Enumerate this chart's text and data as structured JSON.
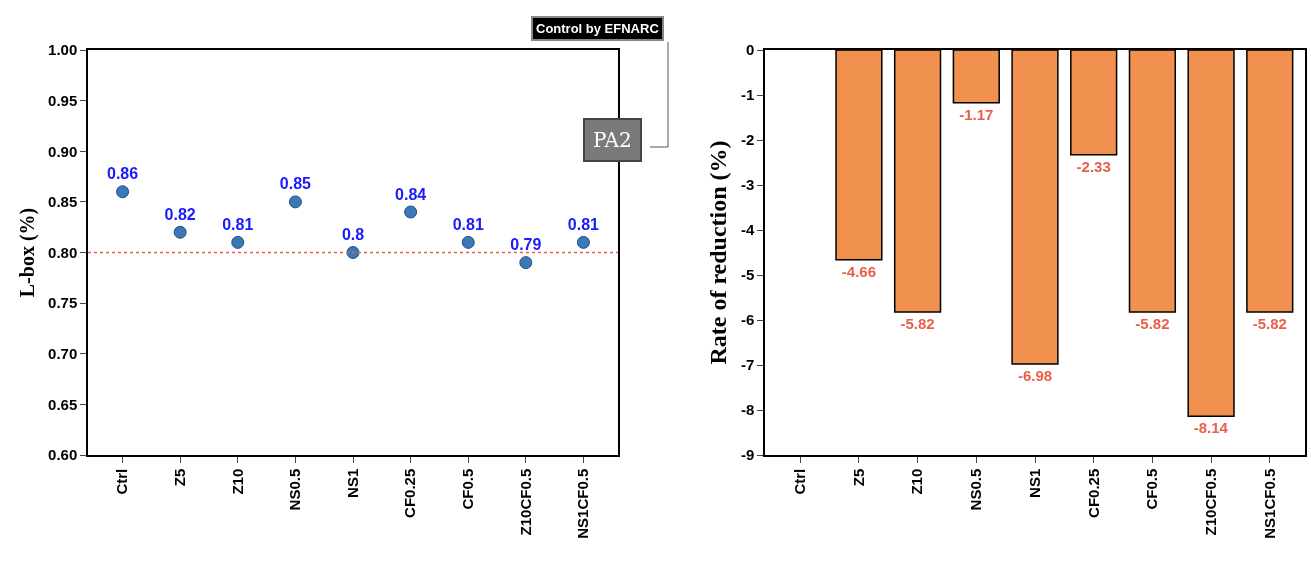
{
  "chart_data": [
    {
      "type": "scatter",
      "ylabel": "L-box (%)",
      "categories": [
        "Ctrl",
        "Z5",
        "Z10",
        "NS0.5",
        "NS1",
        "CF0.25",
        "CF0.5",
        "Z10CF0.5",
        "NS1CF0.5"
      ],
      "values": [
        0.86,
        0.82,
        0.81,
        0.85,
        0.8,
        0.84,
        0.81,
        0.79,
        0.81
      ],
      "color": "#3a78b8",
      "marker": "circle",
      "data_labels": true,
      "ylim": [
        0.6,
        1.0
      ],
      "yticks": [
        {
          "value": 0.6,
          "label": "0.60"
        },
        {
          "value": 0.65,
          "label": "0.65"
        },
        {
          "value": 0.7,
          "label": "0.70"
        },
        {
          "value": 0.75,
          "label": "0.75"
        },
        {
          "value": 0.8,
          "label": "0.80"
        },
        {
          "value": 0.85,
          "label": "0.85"
        },
        {
          "value": 0.9,
          "label": "0.90"
        },
        {
          "value": 0.95,
          "label": "0.95"
        },
        {
          "value": 1.0,
          "label": "1.00"
        }
      ],
      "ref_lines": [
        {
          "axis": "y",
          "value": 0.8,
          "color": "#e8604c",
          "line_style": "dotted"
        }
      ],
      "annotations": [
        "Control by EFNARC",
        "PA2"
      ],
      "grid": false,
      "legend": false
    },
    {
      "type": "bar",
      "ylabel": "Rate of reduction (%)",
      "categories": [
        "Ctrl",
        "Z5",
        "Z10",
        "NS0.5",
        "NS1",
        "CF0.25",
        "CF0.5",
        "Z10CF0.5",
        "NS1CF0.5"
      ],
      "values": [
        null,
        -4.66,
        -5.82,
        -1.17,
        -6.98,
        -2.33,
        -5.82,
        -8.14,
        -5.82
      ],
      "color": "#f0914f",
      "value_labels": [
        null,
        "-4.66",
        "-5.82",
        "-1.17",
        "-6.98",
        "-2.33",
        "-5.82",
        "-8.14",
        "-5.82"
      ],
      "ylim": [
        -9,
        0
      ],
      "yticks": [
        -9,
        -8,
        -7,
        -6,
        -5,
        -4,
        -3,
        -2,
        -1,
        0
      ],
      "grid": false,
      "legend": false
    }
  ]
}
